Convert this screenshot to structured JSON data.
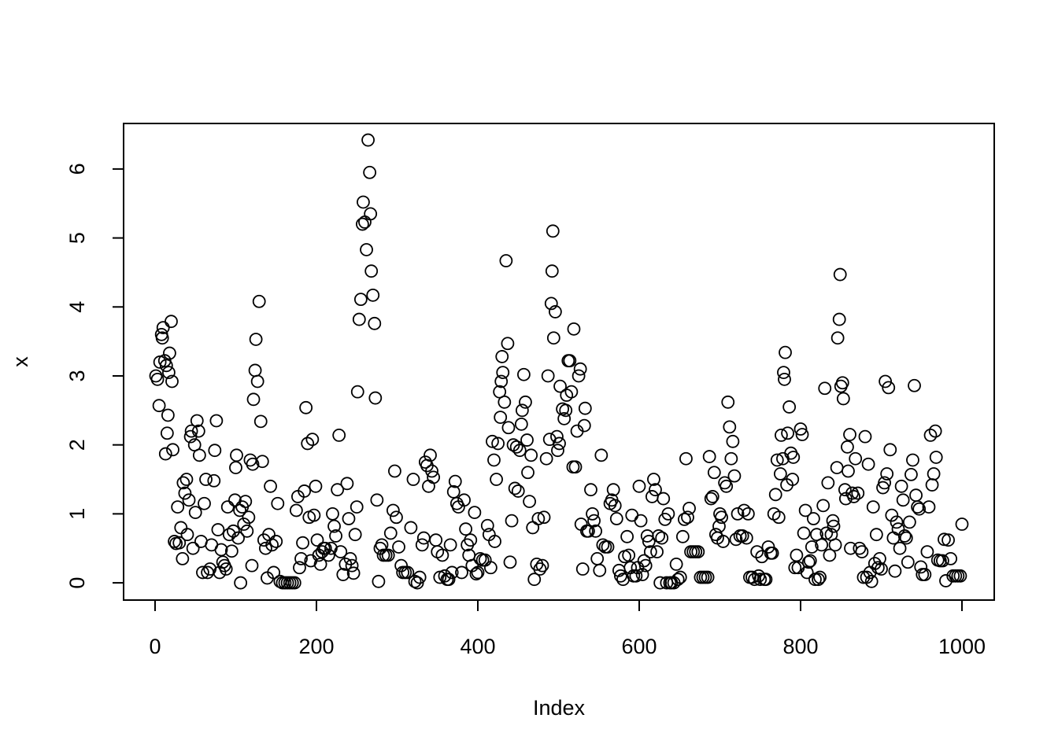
{
  "chart_data": {
    "type": "scatter",
    "xlabel": "Index",
    "ylabel": "x",
    "color": "#000000",
    "xlim": [
      -39,
      1040
    ],
    "ylim": [
      -0.25,
      6.66
    ],
    "xticks": [
      0,
      200,
      400,
      600,
      800,
      1000
    ],
    "yticks": [
      0,
      1,
      2,
      3,
      4,
      5,
      6
    ],
    "x": [
      1,
      3,
      5,
      6,
      8,
      9,
      10,
      12,
      13,
      14,
      15,
      16,
      17,
      18,
      20,
      21,
      22,
      24,
      26,
      28,
      30,
      32,
      34,
      35,
      37,
      39,
      40,
      42,
      44,
      45,
      47,
      49,
      50,
      52,
      54,
      55,
      57,
      59,
      61,
      63,
      65,
      68,
      70,
      73,
      74,
      76,
      78,
      80,
      82,
      84,
      86,
      88,
      90,
      92,
      95,
      97,
      99,
      100,
      101,
      103,
      105,
      106,
      108,
      110,
      112,
      114,
      116,
      118,
      120,
      121,
      122,
      124,
      125,
      127,
      129,
      131,
      133,
      135,
      137,
      139,
      141,
      143,
      145,
      147,
      150,
      152,
      155,
      158,
      161,
      164,
      167,
      170,
      173,
      175,
      177,
      179,
      181,
      183,
      185,
      187,
      189,
      191,
      193,
      195,
      197,
      199,
      201,
      203,
      205,
      207,
      209,
      211,
      215,
      218,
      220,
      222,
      224,
      226,
      228,
      230,
      233,
      236,
      238,
      240,
      242,
      244,
      246,
      248,
      250,
      251,
      253,
      255,
      257,
      258,
      260,
      262,
      264,
      266,
      267,
      268,
      270,
      272,
      273,
      275,
      277,
      279,
      281,
      283,
      286,
      289,
      292,
      295,
      297,
      299,
      302,
      305,
      307,
      310,
      313,
      317,
      320,
      322,
      325,
      328,
      331,
      333,
      335,
      337,
      339,
      341,
      343,
      345,
      348,
      350,
      353,
      356,
      359,
      362,
      364,
      366,
      368,
      370,
      372,
      374,
      376,
      380,
      383,
      385,
      387,
      389,
      391,
      393,
      396,
      398,
      400,
      403,
      406,
      409,
      412,
      414,
      416,
      418,
      420,
      421,
      423,
      425,
      427,
      428,
      429,
      430,
      431,
      433,
      435,
      437,
      438,
      440,
      442,
      444,
      446,
      448,
      450,
      452,
      454,
      455,
      457,
      459,
      461,
      462,
      464,
      466,
      468,
      470,
      473,
      475,
      477,
      480,
      482,
      485,
      487,
      489,
      491,
      492,
      493,
      494,
      496,
      498,
      499,
      501,
      502,
      505,
      507,
      509,
      510,
      512,
      514,
      516,
      518,
      519,
      521,
      523,
      525,
      527,
      528,
      530,
      532,
      533,
      535,
      537,
      540,
      542,
      544,
      546,
      548,
      551,
      553,
      555,
      558,
      561,
      564,
      566,
      568,
      570,
      572,
      575,
      577,
      580,
      582,
      585,
      587,
      589,
      591,
      593,
      596,
      598,
      600,
      602,
      604,
      606,
      608,
      610,
      612,
      614,
      616,
      618,
      620,
      622,
      624,
      626,
      628,
      630,
      632,
      634,
      636,
      638,
      640,
      643,
      646,
      648,
      651,
      654,
      656,
      658,
      660,
      662,
      664,
      667,
      670,
      673,
      676,
      679,
      682,
      685,
      687,
      689,
      691,
      693,
      695,
      697,
      699,
      700,
      702,
      704,
      706,
      708,
      710,
      712,
      714,
      716,
      718,
      720,
      722,
      725,
      728,
      730,
      733,
      735,
      737,
      740,
      743,
      746,
      748,
      750,
      752,
      755,
      757,
      760,
      763,
      765,
      767,
      769,
      771,
      773,
      775,
      776,
      778,
      779,
      780,
      781,
      783,
      784,
      786,
      788,
      790,
      791,
      793,
      795,
      797,
      800,
      802,
      804,
      806,
      808,
      810,
      812,
      814,
      816,
      818,
      820,
      822,
      824,
      826,
      828,
      830,
      832,
      834,
      836,
      838,
      840,
      841,
      843,
      845,
      846,
      848,
      849,
      850,
      852,
      853,
      855,
      856,
      858,
      859,
      861,
      862,
      864,
      866,
      868,
      871,
      873,
      876,
      878,
      880,
      882,
      884,
      886,
      888,
      890,
      892,
      894,
      896,
      898,
      900,
      902,
      904,
      905,
      907,
      909,
      911,
      913,
      915,
      917,
      919,
      921,
      923,
      925,
      927,
      929,
      931,
      933,
      935,
      937,
      939,
      941,
      943,
      945,
      947,
      949,
      951,
      954,
      957,
      959,
      961,
      963,
      965,
      967,
      968,
      970,
      973,
      976,
      978,
      980,
      983,
      986,
      989,
      992,
      995,
      998,
      1000
    ],
    "values": [
      3.0,
      2.95,
      2.57,
      3.2,
      3.6,
      3.55,
      3.7,
      3.22,
      1.87,
      3.15,
      2.17,
      2.43,
      3.05,
      3.33,
      3.79,
      2.92,
      1.93,
      0.6,
      0.57,
      1.1,
      0.58,
      0.8,
      0.35,
      1.45,
      1.3,
      1.5,
      0.7,
      1.2,
      2.12,
      2.2,
      0.5,
      2.0,
      1.02,
      2.35,
      2.2,
      1.85,
      0.6,
      0.15,
      1.15,
      1.5,
      0.15,
      0.2,
      0.55,
      1.48,
      1.92,
      2.35,
      0.77,
      0.15,
      0.48,
      0.3,
      0.25,
      0.2,
      1.1,
      0.7,
      0.46,
      0.75,
      1.2,
      1.67,
      1.85,
      0.65,
      1.05,
      0.0,
      1.1,
      0.85,
      1.18,
      0.75,
      0.95,
      1.78,
      0.25,
      1.72,
      2.66,
      3.08,
      3.53,
      2.92,
      4.08,
      2.34,
      1.76,
      0.62,
      0.5,
      0.07,
      0.7,
      1.4,
      0.55,
      0.15,
      0.6,
      1.15,
      0.02,
      0,
      0,
      0,
      0,
      0,
      0,
      1.05,
      1.25,
      0.22,
      0.35,
      0.58,
      1.33,
      2.54,
      2.02,
      0.95,
      0.32,
      2.08,
      0.98,
      1.4,
      0.62,
      0.4,
      0.27,
      0.45,
      0.5,
      0.5,
      0.4,
      0.5,
      1.0,
      0.82,
      0.68,
      1.35,
      2.14,
      0.45,
      0.12,
      0.27,
      1.44,
      0.93,
      0.35,
      0.25,
      0.14,
      0.7,
      1.1,
      2.77,
      3.82,
      4.11,
      5.2,
      5.52,
      5.23,
      4.83,
      6.42,
      5.95,
      5.35,
      4.52,
      4.17,
      3.76,
      2.68,
      1.2,
      0.02,
      0.5,
      0.55,
      0.4,
      0.4,
      0.4,
      0.72,
      1.05,
      1.62,
      0.95,
      0.52,
      0.25,
      0.15,
      0.15,
      0.15,
      0.8,
      1.5,
      0.02,
      0,
      0.08,
      0.55,
      0.65,
      1.75,
      1.7,
      1.4,
      1.85,
      1.62,
      1.53,
      0.62,
      0.45,
      0.08,
      0.4,
      0.1,
      0.05,
      0.05,
      0.55,
      0.15,
      1.32,
      1.47,
      1.15,
      1.1,
      0.15,
      1.2,
      0.78,
      0.55,
      0.4,
      0.62,
      0.25,
      1.02,
      0.13,
      0.15,
      0.35,
      0.33,
      0.33,
      0.83,
      0.7,
      0.22,
      2.05,
      1.78,
      0.6,
      1.5,
      2.02,
      2.77,
      2.4,
      2.92,
      3.28,
      3.05,
      2.62,
      4.67,
      3.47,
      2.25,
      0.3,
      0.9,
      2.0,
      1.37,
      1.97,
      1.33,
      1.92,
      2.3,
      2.5,
      3.02,
      2.62,
      2.07,
      1.6,
      1.18,
      1.85,
      0.8,
      0.05,
      0.27,
      0.93,
      0.2,
      0.25,
      0.95,
      1.8,
      3.0,
      2.08,
      4.05,
      4.52,
      5.1,
      3.55,
      3.93,
      2.12,
      1.92,
      2.02,
      2.85,
      2.52,
      2.38,
      2.5,
      2.72,
      3.22,
      3.22,
      2.77,
      1.68,
      3.68,
      1.68,
      2.2,
      3.0,
      3.1,
      0.85,
      0.2,
      2.28,
      2.53,
      0.75,
      0.75,
      1.35,
      1.0,
      0.9,
      0.75,
      0.35,
      0.18,
      1.85,
      0.55,
      0.52,
      0.52,
      1.15,
      1.2,
      1.35,
      1.12,
      0.93,
      0.18,
      0.1,
      0.05,
      0.38,
      0.67,
      0.4,
      0.22,
      0.98,
      0.1,
      0.1,
      0.22,
      1.4,
      0.9,
      0.12,
      0.32,
      0.25,
      0.68,
      0.6,
      0.45,
      1.25,
      1.5,
      1.35,
      0.45,
      0.68,
      0,
      0.65,
      1.22,
      0.92,
      0,
      1.0,
      0,
      0,
      0,
      0.27,
      0.05,
      0.08,
      0.67,
      0.92,
      1.8,
      0.95,
      1.08,
      0.45,
      0.45,
      0.45,
      0.45,
      0.08,
      0.08,
      0.08,
      0.08,
      1.83,
      1.22,
      1.25,
      1.6,
      0.7,
      0.65,
      0.82,
      1.0,
      0.95,
      0.6,
      1.45,
      1.4,
      2.62,
      2.26,
      1.8,
      2.05,
      1.55,
      0.63,
      1.0,
      0.68,
      0.68,
      1.05,
      0.65,
      1.0,
      0.08,
      0.08,
      0.05,
      0.45,
      0.1,
      0.05,
      0.38,
      0.05,
      0.05,
      0.52,
      0.43,
      0.43,
      1.0,
      1.28,
      1.78,
      0.95,
      1.58,
      2.14,
      1.8,
      3.05,
      2.95,
      3.34,
      1.42,
      2.17,
      2.55,
      1.88,
      1.5,
      1.82,
      0.22,
      0.4,
      0.22,
      2.23,
      2.15,
      0.72,
      1.05,
      0.15,
      0.3,
      0.32,
      0.52,
      0.93,
      0.05,
      0.7,
      0.05,
      0.08,
      0.55,
      1.12,
      2.82,
      0.72,
      1.45,
      0.4,
      0.7,
      0.9,
      0.82,
      0.55,
      1.67,
      3.55,
      3.82,
      4.47,
      2.85,
      2.9,
      2.67,
      1.35,
      1.22,
      1.97,
      1.62,
      2.15,
      0.5,
      1.3,
      1.25,
      1.8,
      1.3,
      0.5,
      0.45,
      0.08,
      2.12,
      0.08,
      1.72,
      0.15,
      0.02,
      1.1,
      0.28,
      0.7,
      0.22,
      0.35,
      0.2,
      1.38,
      1.45,
      2.92,
      1.58,
      2.83,
      1.93,
      0.98,
      0.65,
      0.17,
      0.88,
      0.78,
      0.5,
      1.4,
      1.2,
      0.68,
      0.65,
      0.3,
      0.88,
      1.57,
      1.78,
      2.86,
      1.27,
      1.1,
      1.07,
      0.23,
      0.12,
      0.12,
      0.45,
      1.1,
      2.14,
      1.42,
      1.58,
      2.2,
      1.82,
      0.33,
      0.32,
      0.32,
      0.63,
      0.03,
      0.62,
      0.35,
      0.1,
      0.1,
      0.1,
      0.1,
      0.85
    ]
  }
}
